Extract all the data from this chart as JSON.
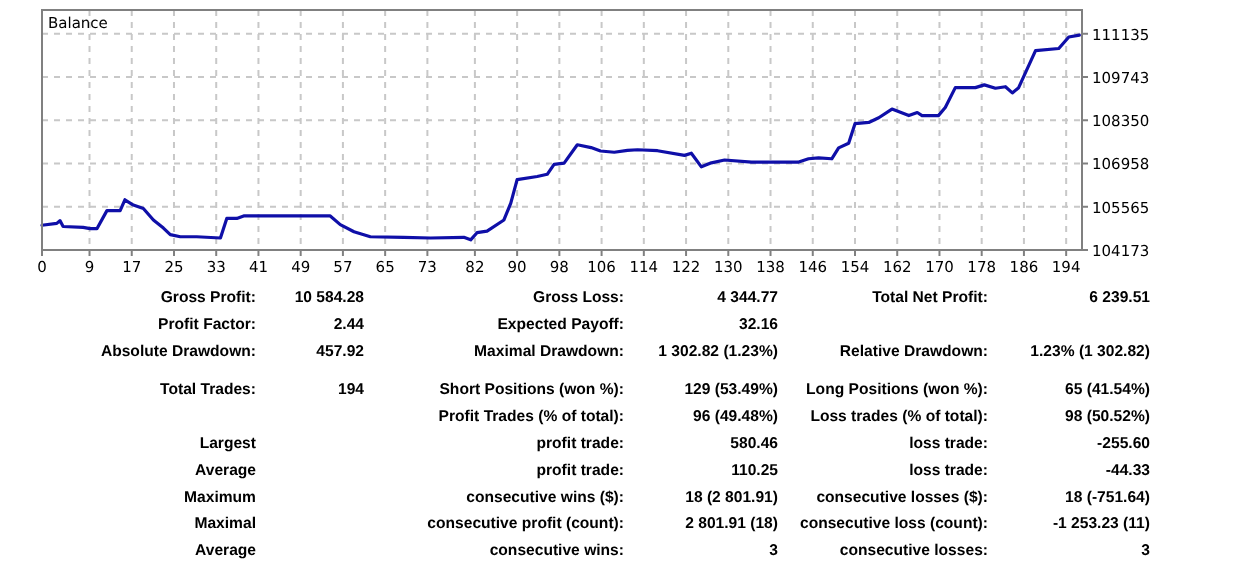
{
  "chart_data": [
    {
      "type": "line",
      "title": "Balance",
      "xlim": [
        0,
        197
      ],
      "ylim": [
        104173,
        111900
      ],
      "xticks": [
        0,
        9,
        17,
        25,
        33,
        41,
        49,
        57,
        65,
        73,
        82,
        90,
        98,
        106,
        114,
        122,
        130,
        138,
        146,
        154,
        162,
        170,
        178,
        186,
        194
      ],
      "yticks": [
        104173,
        105565,
        106958,
        108350,
        109743,
        111135
      ],
      "grid": true,
      "marker": "none",
      "line_style": "solid",
      "series": [
        {
          "color": "#0f0fa8",
          "x": [
            0,
            2.8,
            3.4,
            4,
            7.8,
            9.1,
            10.4,
            12.3,
            14.8,
            15.7,
            17.3,
            19.2,
            21.1,
            23,
            24.3,
            26.2,
            29.3,
            33.8,
            35,
            36.9,
            38.2,
            54.6,
            56.5,
            59.1,
            62.2,
            68.5,
            73.6,
            79.9,
            81.2,
            82.4,
            84.3,
            87.5,
            88.8,
            90,
            93.8,
            95.7,
            97,
            98.9,
            101.4,
            104,
            105.8,
            108.4,
            110.9,
            112.8,
            116.6,
            121.7,
            123,
            124.9,
            126.8,
            129.3,
            134.4,
            143.2,
            145.2,
            147.1,
            149.6,
            150.9,
            152.8,
            154,
            156.6,
            158.5,
            161,
            164.2,
            165.8,
            166.7,
            169.8,
            171.1,
            173,
            176.8,
            178.5,
            180.6,
            182.5,
            183.8,
            185,
            188.2,
            192.6,
            194.5,
            196.5
          ],
          "values": [
            104970,
            105030,
            105120,
            104930,
            104900,
            104860,
            104860,
            105440,
            105440,
            105790,
            105620,
            105510,
            105140,
            104880,
            104670,
            104600,
            104600,
            104560,
            105190,
            105190,
            105270,
            105270,
            104990,
            104760,
            104600,
            104580,
            104560,
            104580,
            104500,
            104730,
            104780,
            105140,
            105680,
            106440,
            106540,
            106610,
            106930,
            106970,
            107560,
            107470,
            107360,
            107320,
            107380,
            107400,
            107370,
            107220,
            107290,
            106850,
            106980,
            107070,
            107000,
            107000,
            107110,
            107140,
            107110,
            107460,
            107610,
            108240,
            108280,
            108430,
            108710,
            108500,
            108600,
            108500,
            108500,
            108760,
            109400,
            109400,
            109490,
            109380,
            109430,
            109230,
            109400,
            110590,
            110660,
            111030,
            111090
          ]
        }
      ]
    },
    {
      "type": "other",
      "annotations": [
        "Gross Profit:",
        "10 584.28",
        "Gross Loss:",
        "4 344.77",
        "Total Net Profit:",
        "6 239.51",
        "Profit Factor:",
        "2.44",
        "Expected Payoff:",
        "32.16",
        "Absolute Drawdown:",
        "457.92",
        "Maximal Drawdown:",
        "1 302.82 (1.23%)",
        "Relative Drawdown:",
        "1.23% (1 302.82)",
        "Total Trades:",
        "194",
        "Short Positions (won %):",
        "129 (53.49%)",
        "Long Positions (won %):",
        "65 (41.54%)",
        "Profit Trades (% of total):",
        "96 (49.48%)",
        "Loss trades (% of total):",
        "98 (50.52%)",
        "Largest",
        "profit trade:",
        "580.46",
        "loss trade:",
        "-255.60",
        "Average",
        "profit trade:",
        "110.25",
        "loss trade:",
        "-44.33",
        "Maximum",
        "consecutive wins ($):",
        "18 (2 801.91)",
        "consecutive losses ($):",
        "18 (-751.64)",
        "Maximal",
        "consecutive profit (count):",
        "2 801.91 (18)",
        "consecutive loss (count):",
        "-1 253.23 (11)",
        "Average",
        "consecutive wins:",
        "3",
        "consecutive losses:",
        "3"
      ]
    }
  ]
}
